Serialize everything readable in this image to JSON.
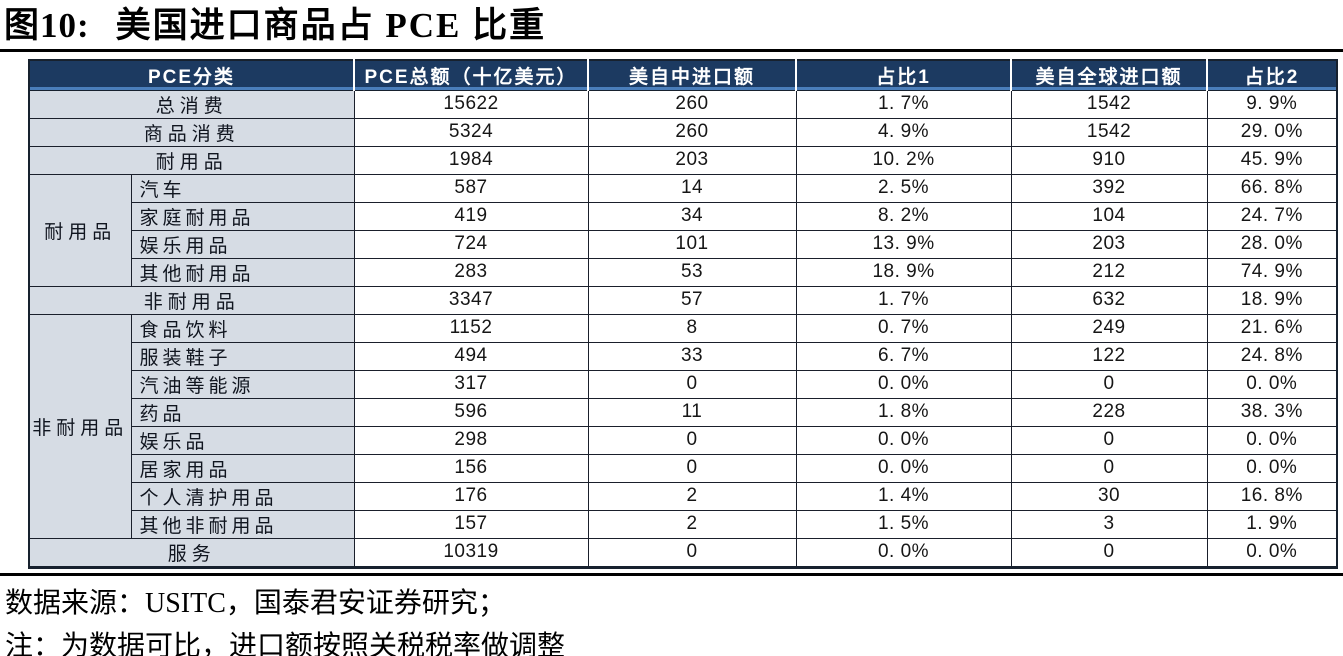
{
  "title": {
    "prefix": "图10:",
    "text": "美国进口商品占 PCE 比重"
  },
  "colors": {
    "header_bg": "#1c3a61",
    "header_text": "#ffffff",
    "accent_line": "#4a7ebb",
    "category_bg": "#d6dce4",
    "border_dark": "#17212e",
    "rule_black": "#000000"
  },
  "table": {
    "columns": [
      {
        "label": "PCE分类",
        "colspan": 2
      },
      {
        "label": "PCE总额（十亿美元）"
      },
      {
        "label": "美自中进口额"
      },
      {
        "label": "占比1"
      },
      {
        "label": "美自全球进口额"
      },
      {
        "label": "占比2"
      }
    ],
    "rows": [
      {
        "kind": "span",
        "label": "总消费",
        "values": [
          "15622",
          "260",
          "1. 7%",
          "1542",
          "9. 9%"
        ]
      },
      {
        "kind": "span",
        "label": "商品消费",
        "values": [
          "5324",
          "260",
          "4. 9%",
          "1542",
          "29. 0%"
        ]
      },
      {
        "kind": "span",
        "label": "耐用品",
        "values": [
          "1984",
          "203",
          "10. 2%",
          "910",
          "45. 9%"
        ]
      },
      {
        "kind": "sub",
        "group": {
          "label": "耐用品",
          "rows": 4
        },
        "label": "汽车",
        "values": [
          "587",
          "14",
          "2. 5%",
          "392",
          "66. 8%"
        ]
      },
      {
        "kind": "sub",
        "label": "家庭耐用品",
        "values": [
          "419",
          "34",
          "8. 2%",
          "104",
          "24. 7%"
        ]
      },
      {
        "kind": "sub",
        "label": "娱乐用品",
        "values": [
          "724",
          "101",
          "13. 9%",
          "203",
          "28. 0%"
        ]
      },
      {
        "kind": "sub",
        "label": "其他耐用品",
        "values": [
          "283",
          "53",
          "18. 9%",
          "212",
          "74. 9%"
        ]
      },
      {
        "kind": "span",
        "label": "非耐用品",
        "values": [
          "3347",
          "57",
          "1. 7%",
          "632",
          "18. 9%"
        ]
      },
      {
        "kind": "sub",
        "group": {
          "label": "非耐用品",
          "rows": 8
        },
        "label": "食品饮料",
        "values": [
          "1152",
          "8",
          "0. 7%",
          "249",
          "21. 6%"
        ]
      },
      {
        "kind": "sub",
        "label": "服装鞋子",
        "values": [
          "494",
          "33",
          "6. 7%",
          "122",
          "24. 8%"
        ]
      },
      {
        "kind": "sub",
        "label": "汽油等能源",
        "values": [
          "317",
          "0",
          "0. 0%",
          "0",
          "0. 0%"
        ]
      },
      {
        "kind": "sub",
        "label": "药品",
        "values": [
          "596",
          "11",
          "1. 8%",
          "228",
          "38. 3%"
        ]
      },
      {
        "kind": "sub",
        "label": "娱乐品",
        "values": [
          "298",
          "0",
          "0. 0%",
          "0",
          "0. 0%"
        ]
      },
      {
        "kind": "sub",
        "label": "居家用品",
        "values": [
          "156",
          "0",
          "0. 0%",
          "0",
          "0. 0%"
        ]
      },
      {
        "kind": "sub",
        "label": "个人清护用品",
        "values": [
          "176",
          "2",
          "1. 4%",
          "30",
          "16. 8%"
        ]
      },
      {
        "kind": "sub",
        "label": "其他非耐用品",
        "values": [
          "157",
          "2",
          "1. 5%",
          "3",
          "1. 9%"
        ]
      },
      {
        "kind": "span",
        "label": "服务",
        "values": [
          "10319",
          "0",
          "0. 0%",
          "0",
          "0. 0%"
        ]
      }
    ]
  },
  "footnotes": {
    "source": "数据来源：USITC，国泰君安证券研究；",
    "note": "注：为数据可比，进口额按照关税税率做调整"
  }
}
